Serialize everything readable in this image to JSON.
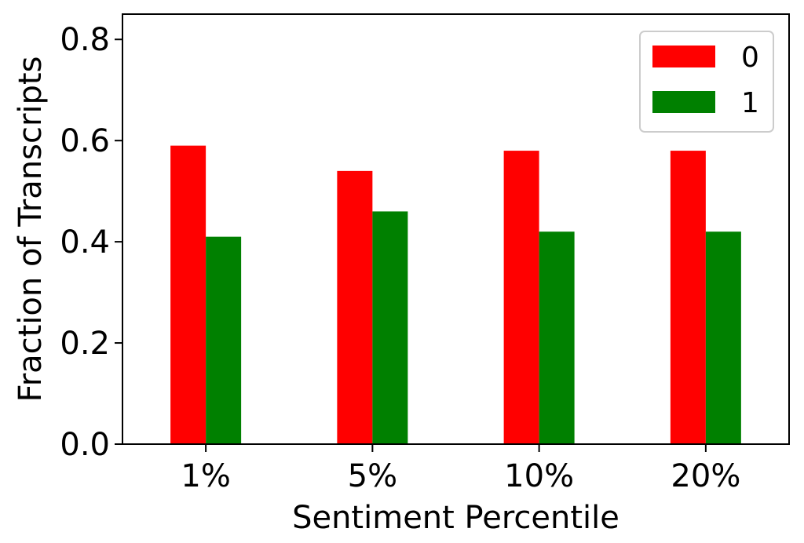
{
  "chart_data": {
    "type": "bar",
    "title": "",
    "xlabel": "Sentiment Percentile",
    "ylabel": "Fraction of Transcripts",
    "categories": [
      "1%",
      "5%",
      "10%",
      "20%"
    ],
    "series": [
      {
        "name": "0",
        "color": "#ff0000",
        "values": [
          0.59,
          0.54,
          0.58,
          0.58
        ]
      },
      {
        "name": "1",
        "color": "#008000",
        "values": [
          0.41,
          0.46,
          0.42,
          0.42
        ]
      }
    ],
    "ylim": [
      0.0,
      0.85
    ],
    "yticks": [
      0.0,
      0.2,
      0.4,
      0.6,
      0.8
    ],
    "ytick_labels": [
      "0.0",
      "0.2",
      "0.4",
      "0.6",
      "0.8"
    ],
    "grid": false,
    "legend_position": "top-right"
  }
}
